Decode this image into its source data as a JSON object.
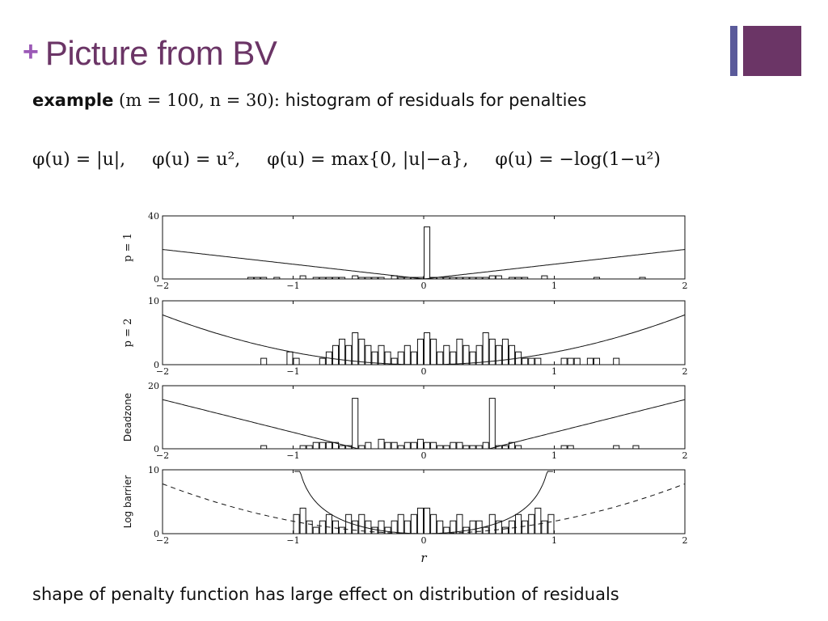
{
  "slide": {
    "plus": "+",
    "title": "Picture from BV",
    "accent_color": "#6b3566",
    "accent_bar_color": "#5a5a9a",
    "plus_color": "#9b59b6",
    "title_color": "#6b3566"
  },
  "example": {
    "bold_word": "example",
    "params": "(m = 100, n = 30):",
    "rest": "histogram of residuals for penalties"
  },
  "formulas": [
    "φ(u) = |u|,",
    "φ(u) = u²,",
    "φ(u) = max{0, |u|−a},",
    "φ(u) = −log(1−u²)"
  ],
  "footer": "shape of penalty function has large effect on distribution of residuals",
  "chart_data": {
    "type": "bar",
    "xlabel": "r",
    "xlim": [
      -2,
      2
    ],
    "xticks": [
      "−2",
      "−1",
      "0",
      "1",
      "2"
    ],
    "bin_width": 0.05,
    "panels": [
      {
        "ylabel": "p = 1",
        "ylim": [
          0,
          40
        ],
        "yticks": [
          "0",
          "40"
        ],
        "curve": "abs",
        "curve_style": "solid",
        "bins_x": [
          -1.325,
          -1.275,
          -1.225,
          -1.125,
          -0.925,
          -0.825,
          -0.775,
          -0.725,
          -0.675,
          -0.625,
          -0.525,
          -0.475,
          -0.425,
          -0.375,
          -0.325,
          -0.225,
          -0.175,
          -0.125,
          -0.075,
          -0.025,
          0.025,
          0.075,
          0.125,
          0.175,
          0.225,
          0.275,
          0.325,
          0.375,
          0.425,
          0.475,
          0.525,
          0.575,
          0.675,
          0.725,
          0.775,
          0.925,
          1.325,
          1.675
        ],
        "counts": [
          1,
          1,
          1,
          1,
          2,
          1,
          1,
          1,
          1,
          1,
          2,
          1,
          1,
          1,
          1,
          2,
          1,
          1,
          1,
          1,
          33,
          1,
          1,
          1,
          1,
          1,
          1,
          1,
          1,
          1,
          2,
          2,
          1,
          1,
          1,
          2,
          1,
          1
        ]
      },
      {
        "ylabel": "p = 2",
        "ylim": [
          0,
          10
        ],
        "yticks": [
          "0",
          "10"
        ],
        "curve": "square",
        "curve_style": "solid",
        "bins_x": [
          -1.225,
          -1.025,
          -0.975,
          -0.775,
          -0.725,
          -0.675,
          -0.625,
          -0.575,
          -0.525,
          -0.475,
          -0.425,
          -0.375,
          -0.325,
          -0.275,
          -0.225,
          -0.175,
          -0.125,
          -0.075,
          -0.025,
          0.025,
          0.075,
          0.125,
          0.175,
          0.225,
          0.275,
          0.325,
          0.375,
          0.425,
          0.475,
          0.525,
          0.575,
          0.625,
          0.675,
          0.725,
          0.775,
          0.825,
          0.875,
          1.075,
          1.125,
          1.175,
          1.275,
          1.325,
          1.475
        ],
        "counts": [
          1,
          2,
          1,
          1,
          2,
          3,
          4,
          3,
          5,
          4,
          3,
          2,
          3,
          2,
          1,
          2,
          3,
          2,
          4,
          5,
          4,
          2,
          3,
          2,
          4,
          3,
          2,
          3,
          5,
          4,
          3,
          4,
          3,
          2,
          1,
          1,
          1,
          1,
          1,
          1,
          1,
          1,
          1
        ]
      },
      {
        "ylabel": "Deadzone",
        "ylim": [
          0,
          20
        ],
        "yticks": [
          "0",
          "20"
        ],
        "curve": "deadzone",
        "curve_style": "solid",
        "bins_x": [
          -1.225,
          -0.925,
          -0.875,
          -0.825,
          -0.775,
          -0.725,
          -0.675,
          -0.625,
          -0.575,
          -0.525,
          -0.475,
          -0.425,
          -0.325,
          -0.275,
          -0.225,
          -0.175,
          -0.125,
          -0.075,
          -0.025,
          0.025,
          0.075,
          0.125,
          0.175,
          0.225,
          0.275,
          0.325,
          0.375,
          0.425,
          0.475,
          0.525,
          0.575,
          0.625,
          0.675,
          0.725,
          1.075,
          1.125,
          1.475,
          1.625
        ],
        "counts": [
          1,
          1,
          1,
          2,
          2,
          2,
          2,
          1,
          1,
          16,
          1,
          2,
          3,
          2,
          2,
          1,
          2,
          2,
          3,
          2,
          2,
          1,
          1,
          2,
          2,
          1,
          1,
          1,
          2,
          16,
          1,
          1,
          2,
          1,
          1,
          1,
          1,
          1
        ]
      },
      {
        "ylabel": "Log barrier",
        "ylim": [
          0,
          10
        ],
        "yticks": [
          "0",
          "10"
        ],
        "curve": "logbarrier",
        "curve_style": "solid",
        "ref_curve": "square",
        "ref_curve_style": "dashed",
        "bins_x": [
          -0.975,
          -0.925,
          -0.875,
          -0.825,
          -0.775,
          -0.725,
          -0.675,
          -0.625,
          -0.575,
          -0.525,
          -0.475,
          -0.425,
          -0.375,
          -0.325,
          -0.275,
          -0.225,
          -0.175,
          -0.125,
          -0.075,
          -0.025,
          0.025,
          0.075,
          0.125,
          0.175,
          0.225,
          0.275,
          0.325,
          0.375,
          0.425,
          0.475,
          0.525,
          0.575,
          0.625,
          0.675,
          0.725,
          0.775,
          0.825,
          0.875,
          0.925,
          0.975
        ],
        "counts": [
          3,
          4,
          2,
          1,
          2,
          3,
          2,
          1,
          3,
          2,
          3,
          2,
          1,
          2,
          1,
          2,
          3,
          2,
          3,
          4,
          4,
          3,
          2,
          1,
          2,
          3,
          1,
          2,
          2,
          1,
          3,
          2,
          1,
          2,
          3,
          2,
          3,
          4,
          2,
          3
        ]
      }
    ]
  }
}
